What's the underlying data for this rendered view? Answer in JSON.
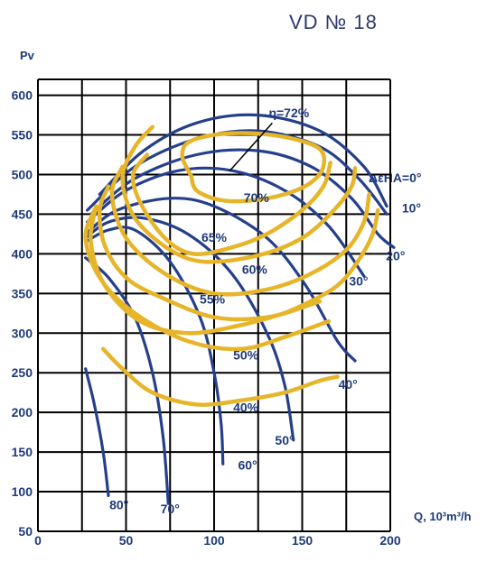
{
  "chart_data": {
    "type": "line",
    "title": "VD № 18",
    "xlabel": "Q, 10³m³/h",
    "ylabel": "Pv",
    "xlim": [
      0,
      200
    ],
    "ylim": [
      50,
      620
    ],
    "x_ticks": [
      "0",
      "50",
      "100",
      "150",
      "200"
    ],
    "y_ticks": [
      "50",
      "100",
      "150",
      "200",
      "250",
      "300",
      "350",
      "400",
      "450",
      "500",
      "550",
      "600"
    ],
    "grid": true,
    "blade_angle_title": "ΔεΗΑ=0°",
    "blade_angle_curves": [
      {
        "label": "10°",
        "points": [
          [
            35,
            475
          ],
          [
            60,
            530
          ],
          [
            90,
            565
          ],
          [
            125,
            575
          ],
          [
            160,
            555
          ],
          [
            185,
            510
          ],
          [
            198,
            460
          ]
        ]
      },
      {
        "label": "0°",
        "points": [
          [
            28,
            455
          ],
          [
            55,
            510
          ],
          [
            90,
            545
          ],
          [
            125,
            555
          ],
          [
            160,
            535
          ],
          [
            182,
            495
          ],
          [
            198,
            450
          ]
        ]
      },
      {
        "label": "20°",
        "points": [
          [
            30,
            450
          ],
          [
            55,
            495
          ],
          [
            90,
            525
          ],
          [
            125,
            530
          ],
          [
            155,
            510
          ],
          [
            178,
            470
          ],
          [
            193,
            425
          ],
          [
            202,
            408
          ]
        ]
      },
      {
        "label": "30°",
        "points": [
          [
            28,
            440
          ],
          [
            50,
            480
          ],
          [
            80,
            505
          ],
          [
            110,
            505
          ],
          [
            140,
            480
          ],
          [
            165,
            435
          ],
          [
            185,
            372
          ]
        ]
      },
      {
        "label": "40°",
        "points": [
          [
            27,
            425
          ],
          [
            45,
            455
          ],
          [
            75,
            470
          ],
          [
            100,
            460
          ],
          [
            130,
            420
          ],
          [
            152,
            360
          ],
          [
            170,
            290
          ],
          [
            180,
            265
          ]
        ]
      },
      {
        "label": "50°",
        "points": [
          [
            27,
            420
          ],
          [
            40,
            440
          ],
          [
            60,
            445
          ],
          [
            85,
            425
          ],
          [
            110,
            375
          ],
          [
            130,
            300
          ],
          [
            140,
            235
          ],
          [
            145,
            165
          ]
        ]
      },
      {
        "label": "60°",
        "points": [
          [
            27,
            415
          ],
          [
            40,
            430
          ],
          [
            55,
            430
          ],
          [
            75,
            390
          ],
          [
            92,
            320
          ],
          [
            100,
            250
          ],
          [
            104,
            185
          ],
          [
            105,
            135
          ]
        ]
      },
      {
        "label": "70°",
        "points": [
          [
            27,
            395
          ],
          [
            40,
            370
          ],
          [
            55,
            320
          ],
          [
            65,
            250
          ],
          [
            71,
            170
          ],
          [
            74,
            85
          ]
        ]
      },
      {
        "label": "80°",
        "points": [
          [
            27,
            255
          ],
          [
            32,
            210
          ],
          [
            37,
            150
          ],
          [
            40,
            95
          ]
        ]
      }
    ],
    "efficiency_curves": [
      {
        "label": "η=72%",
        "closed": true,
        "points": [
          [
            87,
            498
          ],
          [
            82,
            522
          ],
          [
            85,
            540
          ],
          [
            100,
            550
          ],
          [
            122,
            552
          ],
          [
            145,
            545
          ],
          [
            160,
            532
          ],
          [
            162,
            510
          ],
          [
            155,
            490
          ],
          [
            140,
            475
          ],
          [
            120,
            467
          ],
          [
            103,
            468
          ],
          [
            90,
            480
          ],
          [
            87,
            498
          ]
        ]
      },
      {
        "label": "70%",
        "points": [
          [
            62,
            525
          ],
          [
            54,
            500
          ],
          [
            58,
            465
          ],
          [
            72,
            420
          ],
          [
            88,
            400
          ],
          [
            110,
            408
          ],
          [
            130,
            425
          ],
          [
            150,
            455
          ],
          [
            162,
            485
          ],
          [
            166,
            515
          ]
        ]
      },
      {
        "label": "65%",
        "points": [
          [
            65,
            560
          ],
          [
            55,
            535
          ],
          [
            48,
            495
          ],
          [
            55,
            445
          ],
          [
            75,
            405
          ],
          [
            95,
            390
          ],
          [
            125,
            398
          ],
          [
            150,
            420
          ],
          [
            168,
            455
          ],
          [
            178,
            485
          ],
          [
            180,
            508
          ]
        ]
      },
      {
        "label": "60%",
        "points": [
          [
            48,
            510
          ],
          [
            42,
            475
          ],
          [
            50,
            420
          ],
          [
            72,
            375
          ],
          [
            100,
            350
          ],
          [
            130,
            355
          ],
          [
            155,
            375
          ],
          [
            175,
            405
          ],
          [
            185,
            440
          ],
          [
            188,
            475
          ]
        ]
      },
      {
        "label": "55%",
        "points": [
          [
            40,
            485
          ],
          [
            35,
            455
          ],
          [
            38,
            410
          ],
          [
            50,
            370
          ],
          [
            70,
            345
          ],
          [
            100,
            320
          ],
          [
            130,
            320
          ],
          [
            150,
            335
          ],
          [
            170,
            360
          ],
          [
            182,
            392
          ],
          [
            190,
            425
          ],
          [
            193,
            455
          ]
        ]
      },
      {
        "label": "50%",
        "points": [
          [
            33,
            460
          ],
          [
            30,
            415
          ],
          [
            38,
            360
          ],
          [
            58,
            315
          ],
          [
            85,
            300
          ],
          [
            115,
            310
          ],
          [
            140,
            325
          ],
          [
            160,
            340
          ]
        ]
      },
      {
        "label": "40%",
        "points": [
          [
            32,
            455
          ],
          [
            27,
            420
          ],
          [
            35,
            370
          ],
          [
            55,
            325
          ],
          [
            85,
            290
          ],
          [
            115,
            280
          ],
          [
            140,
            295
          ],
          [
            165,
            315
          ]
        ]
      },
      {
        "label": "",
        "points": [
          [
            37,
            280
          ],
          [
            48,
            255
          ],
          [
            65,
            225
          ],
          [
            90,
            210
          ],
          [
            115,
            215
          ],
          [
            140,
            225
          ],
          [
            160,
            240
          ],
          [
            170,
            245
          ]
        ]
      }
    ],
    "efficiency_label_positions": [
      {
        "label": "70%",
        "x": 124,
        "y": 465
      },
      {
        "label": "65%",
        "x": 100,
        "y": 415
      },
      {
        "label": "60%",
        "x": 123,
        "y": 375
      },
      {
        "label": "55%",
        "x": 99,
        "y": 337
      },
      {
        "label": "50%",
        "x": 118,
        "y": 267
      },
      {
        "label": "40%",
        "x": 118,
        "y": 201
      }
    ],
    "angle_label_positions": [
      {
        "label": "10°",
        "x": 212,
        "y": 452
      },
      {
        "label": "20°",
        "x": 203,
        "y": 392
      },
      {
        "label": "30°",
        "x": 182,
        "y": 360
      },
      {
        "label": "40°",
        "x": 176,
        "y": 230
      },
      {
        "label": "50°",
        "x": 140,
        "y": 159
      },
      {
        "label": "60°",
        "x": 119,
        "y": 128
      },
      {
        "label": "70°",
        "x": 75,
        "y": 73
      },
      {
        "label": "80°",
        "x": 46,
        "y": 78
      }
    ]
  },
  "colors": {
    "blade_curve": "#243f8c",
    "efficiency_curve": "#e6b52a",
    "text": "#1e3a7a"
  }
}
